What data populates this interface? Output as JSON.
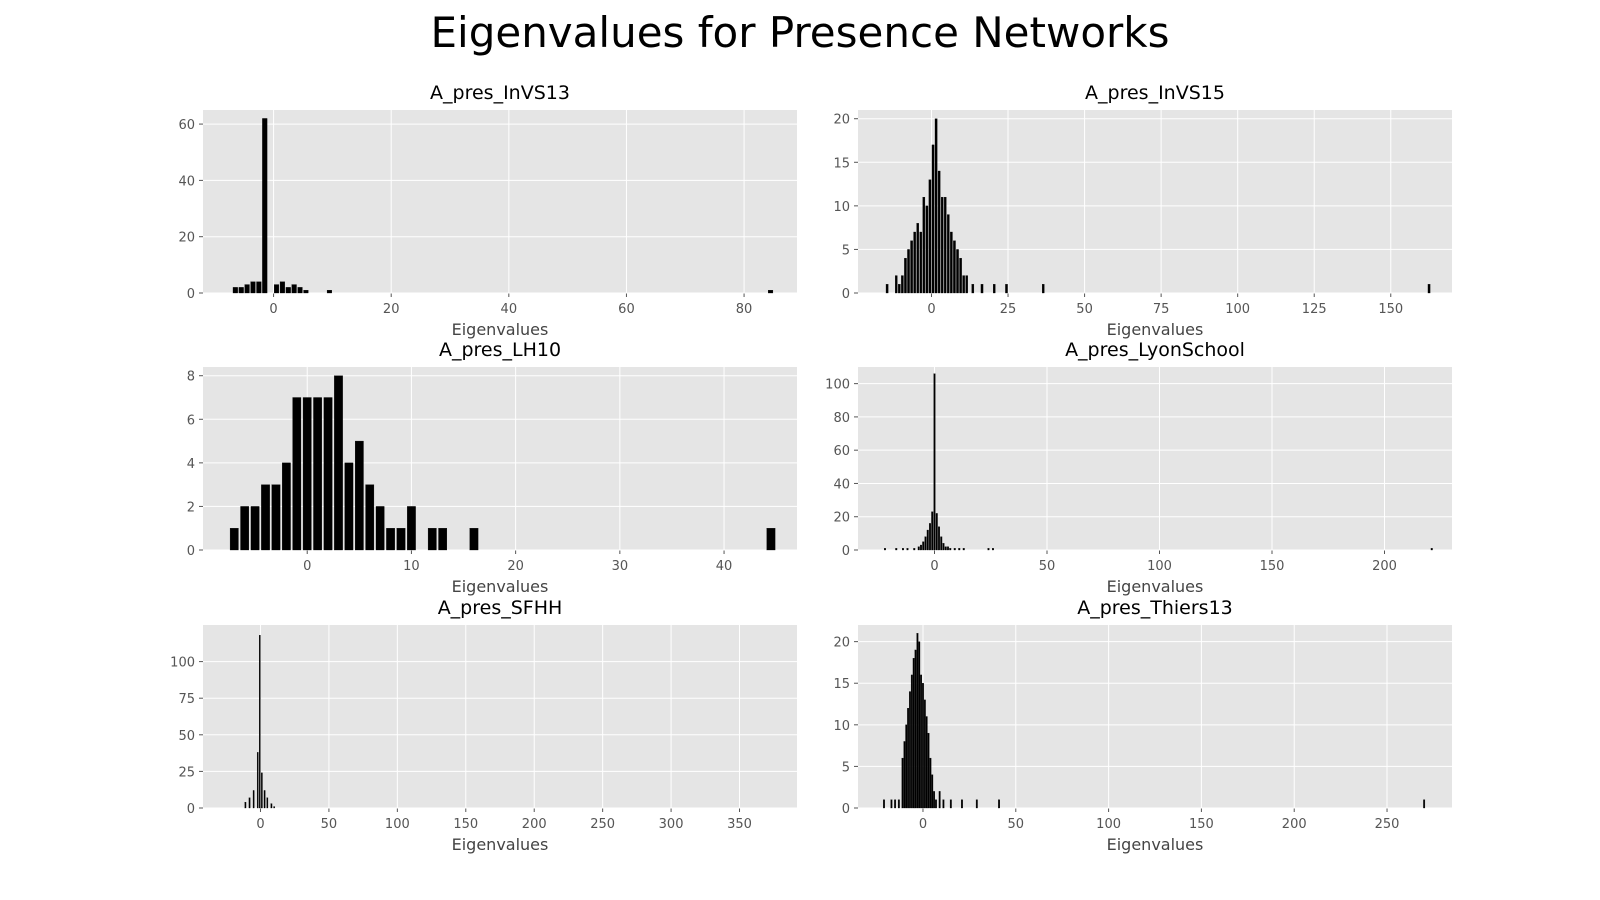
{
  "title": "Eigenvalues for Presence Networks",
  "chart_data": [
    {
      "type": "bar",
      "title": "A_pres_InVS13",
      "xlabel": "Eigenvalues",
      "ylabel": "",
      "xlim": [
        -12,
        89
      ],
      "ylim": [
        0,
        65
      ],
      "xticks": [
        0,
        20,
        40,
        60,
        80
      ],
      "yticks": [
        0,
        20,
        40,
        60
      ],
      "grid": true,
      "bar_width": 0.8,
      "bars": [
        [
          -6.5,
          2
        ],
        [
          -5.5,
          2
        ],
        [
          -4.5,
          3
        ],
        [
          -3.5,
          4
        ],
        [
          -2.5,
          4
        ],
        [
          -1.5,
          62
        ],
        [
          0.5,
          3
        ],
        [
          1.5,
          4
        ],
        [
          2.5,
          2
        ],
        [
          3.5,
          3
        ],
        [
          4.5,
          2
        ],
        [
          5.5,
          1
        ],
        [
          9.5,
          1
        ],
        [
          84.5,
          1
        ]
      ]
    },
    {
      "type": "bar",
      "title": "A_pres_InVS15",
      "xlabel": "Eigenvalues",
      "ylabel": "",
      "xlim": [
        -24,
        170
      ],
      "ylim": [
        0,
        21
      ],
      "xticks": [
        0,
        25,
        50,
        75,
        100,
        125,
        150
      ],
      "yticks": [
        0,
        5,
        10,
        15,
        20
      ],
      "grid": true,
      "bar_width": 0.7,
      "bars": [
        [
          -14.5,
          1
        ],
        [
          -11.5,
          2
        ],
        [
          -10.5,
          1
        ],
        [
          -9.5,
          2
        ],
        [
          -8.5,
          4
        ],
        [
          -7.5,
          5
        ],
        [
          -6.5,
          6
        ],
        [
          -5.5,
          7
        ],
        [
          -4.5,
          8
        ],
        [
          -3.5,
          7
        ],
        [
          -2.5,
          11
        ],
        [
          -1.5,
          10
        ],
        [
          -0.5,
          13
        ],
        [
          0.5,
          17
        ],
        [
          1.5,
          20
        ],
        [
          2.5,
          14
        ],
        [
          3.5,
          11
        ],
        [
          4.5,
          11
        ],
        [
          5.5,
          9
        ],
        [
          6.5,
          7
        ],
        [
          7.5,
          6
        ],
        [
          8.5,
          5
        ],
        [
          9.5,
          4
        ],
        [
          10.5,
          2
        ],
        [
          11.5,
          2
        ],
        [
          13.5,
          1
        ],
        [
          16.5,
          1
        ],
        [
          20.5,
          1
        ],
        [
          24.5,
          1
        ],
        [
          36.5,
          1
        ],
        [
          162.5,
          1
        ]
      ]
    },
    {
      "type": "bar",
      "title": "A_pres_LH10",
      "xlabel": "Eigenvalues",
      "ylabel": "",
      "xlim": [
        -10,
        47
      ],
      "ylim": [
        0,
        8.4
      ],
      "xticks": [
        0,
        10,
        20,
        30,
        40
      ],
      "yticks": [
        0,
        2,
        4,
        6,
        8
      ],
      "grid": true,
      "bar_width": 0.8,
      "bars": [
        [
          -7,
          1
        ],
        [
          -6,
          2
        ],
        [
          -5,
          2
        ],
        [
          -4,
          3
        ],
        [
          -3,
          3
        ],
        [
          -2,
          4
        ],
        [
          -1,
          7
        ],
        [
          0,
          7
        ],
        [
          1,
          7
        ],
        [
          2,
          7
        ],
        [
          3,
          8
        ],
        [
          4,
          4
        ],
        [
          5,
          5
        ],
        [
          6,
          3
        ],
        [
          7,
          2
        ],
        [
          8,
          1
        ],
        [
          9,
          1
        ],
        [
          10,
          2
        ],
        [
          12,
          1
        ],
        [
          13,
          1
        ],
        [
          16,
          1
        ],
        [
          44.5,
          1
        ]
      ]
    },
    {
      "type": "bar",
      "title": "A_pres_LyonSchool",
      "xlabel": "Eigenvalues",
      "ylabel": "",
      "xlim": [
        -34,
        230
      ],
      "ylim": [
        0,
        110
      ],
      "xticks": [
        0,
        50,
        100,
        150,
        200
      ],
      "yticks": [
        0,
        20,
        40,
        60,
        80,
        100
      ],
      "grid": true,
      "bar_width": 0.7,
      "bars": [
        [
          -22,
          1
        ],
        [
          -17,
          1
        ],
        [
          -14,
          1
        ],
        [
          -12,
          1
        ],
        [
          -9,
          1
        ],
        [
          -7,
          2
        ],
        [
          -6,
          3
        ],
        [
          -5,
          5
        ],
        [
          -4,
          8
        ],
        [
          -3,
          12
        ],
        [
          -2,
          16
        ],
        [
          -1,
          23
        ],
        [
          0,
          106
        ],
        [
          1,
          22
        ],
        [
          2,
          14
        ],
        [
          3,
          8
        ],
        [
          4,
          4
        ],
        [
          5,
          2
        ],
        [
          6,
          2
        ],
        [
          7,
          1
        ],
        [
          9,
          1
        ],
        [
          11,
          1
        ],
        [
          13,
          1
        ],
        [
          24,
          1
        ],
        [
          26,
          1
        ],
        [
          221,
          1
        ]
      ]
    },
    {
      "type": "bar",
      "title": "A_pres_SFHH",
      "xlabel": "Eigenvalues",
      "ylabel": "",
      "xlim": [
        -42,
        392
      ],
      "ylim": [
        0,
        125
      ],
      "xticks": [
        0,
        50,
        100,
        150,
        200,
        250,
        300,
        350
      ],
      "yticks": [
        0,
        25,
        50,
        75,
        100
      ],
      "grid": true,
      "bar_width": 0.9,
      "bars": [
        [
          -11,
          4
        ],
        [
          -8,
          7
        ],
        [
          -5,
          12
        ],
        [
          -2,
          38
        ],
        [
          -0.5,
          118
        ],
        [
          1,
          24
        ],
        [
          3,
          12
        ],
        [
          5,
          7
        ],
        [
          8,
          3
        ],
        [
          10,
          1
        ]
      ]
    },
    {
      "type": "bar",
      "title": "A_pres_Thiers13",
      "xlabel": "Eigenvalues",
      "ylabel": "",
      "xlim": [
        -35,
        285
      ],
      "ylim": [
        0,
        22
      ],
      "xticks": [
        0,
        50,
        100,
        150,
        200,
        250
      ],
      "yticks": [
        0,
        5,
        10,
        15,
        20
      ],
      "grid": true,
      "bar_width": 0.8,
      "bars": [
        [
          -21,
          1
        ],
        [
          -17,
          1
        ],
        [
          -15,
          1
        ],
        [
          -13,
          1
        ],
        [
          -11,
          6
        ],
        [
          -10,
          8
        ],
        [
          -9,
          10
        ],
        [
          -8,
          12
        ],
        [
          -7,
          14
        ],
        [
          -6,
          16
        ],
        [
          -5,
          18
        ],
        [
          -4,
          19
        ],
        [
          -3,
          21
        ],
        [
          -2,
          20
        ],
        [
          -1,
          16
        ],
        [
          0,
          15
        ],
        [
          1,
          13
        ],
        [
          2,
          11
        ],
        [
          3,
          9
        ],
        [
          4,
          6
        ],
        [
          5,
          4
        ],
        [
          6,
          2
        ],
        [
          7,
          1
        ],
        [
          9,
          2
        ],
        [
          11,
          1
        ],
        [
          15,
          1
        ],
        [
          21,
          1
        ],
        [
          29,
          1
        ],
        [
          41,
          1
        ],
        [
          270,
          1
        ]
      ]
    }
  ]
}
